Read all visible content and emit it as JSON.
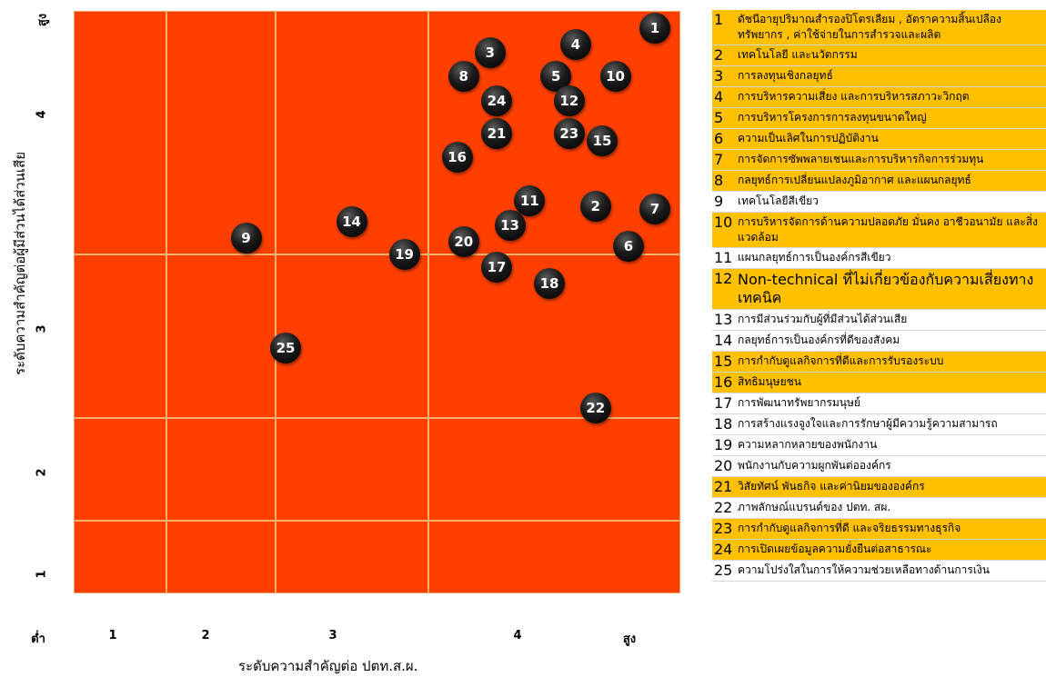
{
  "colors": {
    "plot_bg": "#ff3f00",
    "grid": "#f2b26c",
    "highlight": "#ffc000",
    "marker": "#000000"
  },
  "chart_data": {
    "type": "scatter",
    "xlabel": "ระดับความสำคัญต่อ ปตท.ส.ผ.",
    "ylabel": "ระดับความสำคัญต่อผู้มีส่วนได้ส่วนเสีย",
    "xlim": [
      0.6,
      5.2
    ],
    "ylim": [
      0.8,
      4.4
    ],
    "x_ticks": [
      "ต่ำ",
      "1",
      "2",
      "3",
      "4",
      "สูง"
    ],
    "y_ticks": [
      "1",
      "2",
      "3",
      "4",
      "สูง"
    ],
    "grid": true,
    "points": [
      {
        "label": "1",
        "x": 5.0,
        "y": 4.3
      },
      {
        "label": "2",
        "x": 4.55,
        "y": 3.2
      },
      {
        "label": "3",
        "x": 3.75,
        "y": 4.15
      },
      {
        "label": "4",
        "x": 4.4,
        "y": 4.2
      },
      {
        "label": "5",
        "x": 4.25,
        "y": 4.0
      },
      {
        "label": "6",
        "x": 4.8,
        "y": 2.95
      },
      {
        "label": "7",
        "x": 5.0,
        "y": 3.18
      },
      {
        "label": "8",
        "x": 3.55,
        "y": 4.0
      },
      {
        "label": "9",
        "x": 1.9,
        "y": 3.0
      },
      {
        "label": "10",
        "x": 4.7,
        "y": 4.0
      },
      {
        "label": "11",
        "x": 4.05,
        "y": 3.23
      },
      {
        "label": "12",
        "x": 4.35,
        "y": 3.85
      },
      {
        "label": "13",
        "x": 3.9,
        "y": 3.08
      },
      {
        "label": "14",
        "x": 2.7,
        "y": 3.1
      },
      {
        "label": "15",
        "x": 4.6,
        "y": 3.6
      },
      {
        "label": "16",
        "x": 3.5,
        "y": 3.5
      },
      {
        "label": "17",
        "x": 3.8,
        "y": 2.82
      },
      {
        "label": "18",
        "x": 4.2,
        "y": 2.72
      },
      {
        "label": "19",
        "x": 3.1,
        "y": 2.9
      },
      {
        "label": "20",
        "x": 3.55,
        "y": 2.98
      },
      {
        "label": "21",
        "x": 3.8,
        "y": 3.65
      },
      {
        "label": "22",
        "x": 4.55,
        "y": 1.95
      },
      {
        "label": "23",
        "x": 4.35,
        "y": 3.65
      },
      {
        "label": "24",
        "x": 3.8,
        "y": 3.85
      },
      {
        "label": "25",
        "x": 2.2,
        "y": 2.32
      }
    ]
  },
  "legend": [
    {
      "num": "1",
      "text": "ดัชนีอายุปริมาณสำรองปิโตรเลียม , อัตราความสิ้นเปลือง ทรัพยากร , ค่าใช้จ่ายในการสำรวจและผลิต",
      "highlight": true
    },
    {
      "num": "2",
      "text": "เทคโนโลยี และนวัตกรรม",
      "highlight": true
    },
    {
      "num": "3",
      "text": "การลงทุนเชิงกลยุทธ์",
      "highlight": true
    },
    {
      "num": "4",
      "text": "การบริหารความเสี่ยง และการบริหารสภาวะวิกฤต",
      "highlight": true
    },
    {
      "num": "5",
      "text": "การบริหารโครงการการลงทุนขนาดใหญ่",
      "highlight": true
    },
    {
      "num": "6",
      "text": "ความเป็นเลิศในการปฏิบัติงาน",
      "highlight": true
    },
    {
      "num": "7",
      "text": "การจัดการซัพพลายเชนและการบริหารกิจการร่วมทุน",
      "highlight": true
    },
    {
      "num": "8",
      "text": "กลยุทธ์การเปลี่ยนแปลงภูมิอากาศ และแผนกลยุทธ์",
      "highlight": true
    },
    {
      "num": "9",
      "text": "เทคโนโลยีสีเขียว",
      "highlight": false
    },
    {
      "num": "10",
      "text": "การบริหารจัดการด้านความปลอดภัย มั่นคง อาชีวอนามัย และสิ่งแวดล้อม",
      "highlight": true
    },
    {
      "num": "11",
      "text": "แผนกลยุทธ์การเป็นองค์กรสีเขียว",
      "highlight": false
    },
    {
      "num": "12",
      "text": "Non-technical ที่ไม่เกี่ยวข้องกับความเสี่ยงทางเทคนิค",
      "highlight": true,
      "big": true
    },
    {
      "num": "13",
      "text": "การมีส่วนร่วมกับผู้ที่มีส่วนได้ส่วนเสีย",
      "highlight": false
    },
    {
      "num": "14",
      "text": "กลยุทธ์การเป็นองค์กรที่ดีของสังคม",
      "highlight": false
    },
    {
      "num": "15",
      "text": "การกำกับดูแลกิจการที่ดีและการรับรองระบบ",
      "highlight": true
    },
    {
      "num": "16",
      "text": "สิทธิมนุษยชน",
      "highlight": true
    },
    {
      "num": "17",
      "text": "การพัฒนาทรัพยากรมนุษย์",
      "highlight": false
    },
    {
      "num": "18",
      "text": "การสร้างแรงจูงใจและการรักษาผู้มีความรู้ความสามารถ",
      "highlight": false
    },
    {
      "num": "19",
      "text": "ความหลากหลายของพนักงาน",
      "highlight": false
    },
    {
      "num": "20",
      "text": "พนักงานกับความผูกพันต่อองค์กร",
      "highlight": false
    },
    {
      "num": "21",
      "text": "วิสัยทัศน์ พันธกิจ และค่านิยมขององค์กร",
      "highlight": true
    },
    {
      "num": "22",
      "text": "ภาพลักษณ์แบรนด์ของ ปตท. สผ.",
      "highlight": false
    },
    {
      "num": "23",
      "text": "การกำกับดูแลกิจการที่ดี และจริยธรรมทางธุรกิจ",
      "highlight": true
    },
    {
      "num": "24",
      "text": "การเปิดเผยข้อมูลความยั่งยืนต่อสาธารณะ",
      "highlight": true
    },
    {
      "num": "25",
      "text": "ความโปร่งใสในการให้ความช่วยเหลือทางด้านการเงิน",
      "highlight": false
    }
  ]
}
